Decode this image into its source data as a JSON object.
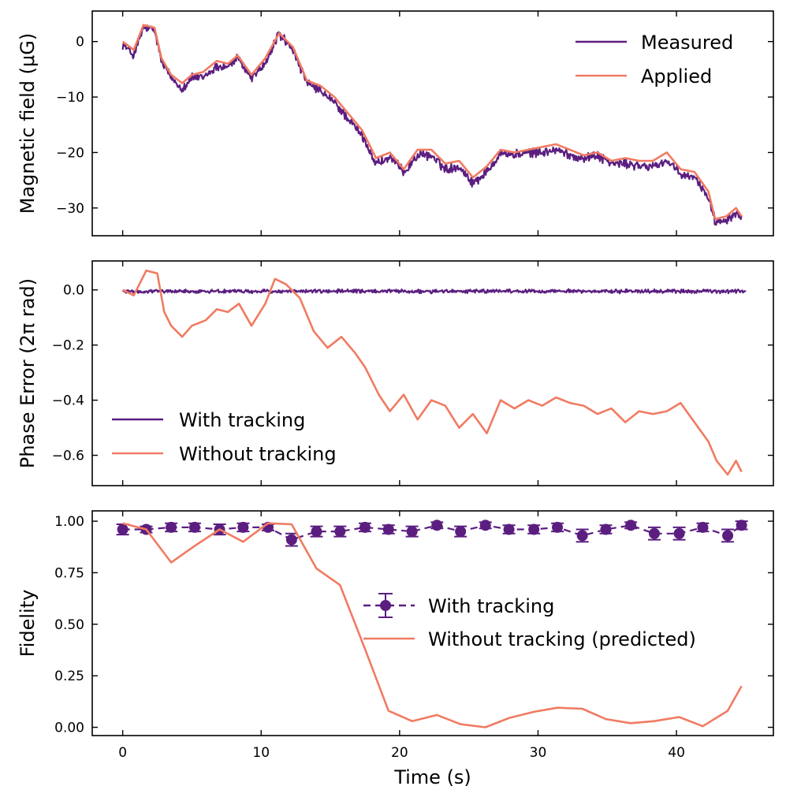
{
  "chart_data": [
    {
      "type": "line",
      "ylabel": "Magnetic field (μG)",
      "xlim": [
        -2.2,
        47.0
      ],
      "ylim": [
        -35,
        5.5
      ],
      "xticks": [
        0,
        10,
        20,
        30,
        40
      ],
      "yticks": [
        0,
        -10,
        -20,
        -30
      ],
      "ytick_labels": [
        "0",
        "−10",
        "−20",
        "−30"
      ],
      "legend": "upper right",
      "series": [
        {
          "name": "Measured",
          "color": "#5b1e80",
          "noise": 1.0,
          "x": [
            0,
            0.8,
            1.5,
            2.3,
            2.8,
            3.5,
            4.3,
            5.0,
            5.8,
            6.8,
            7.6,
            8.3,
            9.3,
            10.3,
            11.3,
            12.3,
            13.3,
            14.3,
            15.3,
            16.3,
            17.3,
            18.3,
            19.3,
            20.3,
            21.3,
            22.3,
            23.3,
            24.3,
            25.3,
            26.3,
            27.3,
            28.3,
            29.3,
            30.3,
            31.3,
            32.3,
            33.3,
            34.3,
            35.3,
            36.3,
            37.3,
            38.3,
            39.3,
            40.3,
            41.3,
            42.3,
            42.8,
            43.6,
            44.3,
            44.7
          ],
          "y": [
            -0.5,
            -2.5,
            2.5,
            2.0,
            -3.5,
            -6.5,
            -8.5,
            -6.5,
            -6.5,
            -4.5,
            -4.5,
            -3.0,
            -6.5,
            -4.0,
            1.5,
            -1.5,
            -7.5,
            -9.0,
            -11.0,
            -14.0,
            -17.0,
            -22.0,
            -21.0,
            -23.5,
            -20.5,
            -20.5,
            -23.0,
            -22.5,
            -25.5,
            -23.5,
            -20.0,
            -20.5,
            -20.0,
            -20.0,
            -19.5,
            -20.5,
            -21.0,
            -20.5,
            -22.0,
            -22.0,
            -22.5,
            -22.5,
            -21.5,
            -24.0,
            -24.5,
            -28.0,
            -32.5,
            -32.0,
            -31.0,
            -31.5
          ]
        },
        {
          "name": "Applied",
          "color": "#f07b62",
          "x": [
            0,
            0.8,
            1.5,
            2.3,
            2.8,
            3.5,
            4.3,
            5.0,
            5.8,
            6.8,
            7.6,
            8.3,
            9.3,
            10.3,
            11.3,
            12.3,
            13.3,
            14.3,
            15.3,
            16.3,
            17.3,
            18.3,
            19.3,
            20.3,
            21.3,
            22.3,
            23.3,
            24.3,
            25.3,
            26.3,
            27.3,
            28.3,
            29.3,
            30.3,
            31.3,
            32.3,
            33.3,
            34.3,
            35.3,
            36.3,
            37.3,
            38.3,
            39.3,
            40.3,
            41.3,
            42.3,
            42.8,
            43.6,
            44.3,
            44.7
          ],
          "y": [
            0.0,
            -1.5,
            3.0,
            2.5,
            -3.0,
            -6.0,
            -7.5,
            -6.0,
            -5.5,
            -3.5,
            -4.0,
            -2.5,
            -6.0,
            -3.0,
            1.5,
            -1.0,
            -7.0,
            -8.0,
            -10.0,
            -13.0,
            -16.0,
            -21.0,
            -20.0,
            -23.0,
            -19.5,
            -19.5,
            -22.0,
            -21.5,
            -24.5,
            -22.5,
            -19.5,
            -20.0,
            -19.5,
            -19.0,
            -18.5,
            -19.5,
            -20.5,
            -20.0,
            -21.5,
            -21.0,
            -21.5,
            -21.5,
            -20.0,
            -23.0,
            -23.5,
            -27.0,
            -32.0,
            -31.5,
            -30.0,
            -31.5
          ]
        }
      ]
    },
    {
      "type": "line",
      "ylabel": "Phase Error (2π rad)",
      "xlim": [
        -2.2,
        47.0
      ],
      "ylim": [
        -0.71,
        0.105
      ],
      "xticks": [
        0,
        10,
        20,
        30,
        40
      ],
      "yticks": [
        0.0,
        -0.2,
        -0.4,
        -0.6
      ],
      "ytick_labels": [
        "0.0",
        "−0.2",
        "−0.4",
        "−0.6"
      ],
      "legend": "lower left",
      "series": [
        {
          "name": "With tracking",
          "color": "#5b1e80",
          "noise": 0.008,
          "x": [
            0,
            45
          ],
          "y": [
            -0.005,
            -0.005
          ]
        },
        {
          "name": "Without tracking",
          "color": "#f07b62",
          "x": [
            0,
            0.8,
            1.7,
            2.5,
            3.0,
            3.5,
            4.3,
            5.0,
            6.0,
            6.8,
            7.6,
            8.4,
            9.3,
            10.3,
            11.0,
            11.8,
            12.8,
            13.8,
            14.8,
            15.8,
            16.8,
            17.5,
            18.5,
            19.3,
            20.3,
            21.3,
            22.3,
            23.3,
            24.3,
            25.3,
            26.3,
            27.3,
            28.3,
            29.3,
            30.3,
            31.3,
            32.3,
            33.3,
            34.3,
            35.3,
            36.3,
            37.3,
            38.3,
            39.3,
            40.3,
            41.3,
            42.3,
            42.9,
            43.7,
            44.3,
            44.7
          ],
          "y": [
            0.0,
            -0.02,
            0.07,
            0.06,
            -0.08,
            -0.13,
            -0.17,
            -0.13,
            -0.11,
            -0.07,
            -0.08,
            -0.05,
            -0.13,
            -0.05,
            0.04,
            0.02,
            -0.03,
            -0.15,
            -0.21,
            -0.17,
            -0.23,
            -0.28,
            -0.38,
            -0.44,
            -0.38,
            -0.47,
            -0.4,
            -0.42,
            -0.5,
            -0.45,
            -0.52,
            -0.4,
            -0.43,
            -0.4,
            -0.42,
            -0.39,
            -0.41,
            -0.42,
            -0.45,
            -0.43,
            -0.48,
            -0.44,
            -0.45,
            -0.44,
            -0.41,
            -0.48,
            -0.55,
            -0.62,
            -0.67,
            -0.62,
            -0.66
          ]
        }
      ]
    },
    {
      "type": "line",
      "ylabel": "Fidelity",
      "xlabel": "Time (s)",
      "xlim": [
        -2.2,
        47.0
      ],
      "ylim": [
        -0.04,
        1.05
      ],
      "xticks": [
        0,
        10,
        20,
        30,
        40
      ],
      "yticks": [
        0.0,
        0.25,
        0.5,
        0.75,
        1.0
      ],
      "ytick_labels": [
        "0.00",
        "0.25",
        "0.50",
        "0.75",
        "1.00"
      ],
      "xtick_labels": [
        "0",
        "10",
        "20",
        "30",
        "40"
      ],
      "legend": "center right",
      "series": [
        {
          "name": "With tracking",
          "color": "#5b1e80",
          "style": "dashed-errorbar",
          "x": [
            0.0,
            1.7,
            3.5,
            5.2,
            7.0,
            8.7,
            10.5,
            12.2,
            14.0,
            15.7,
            17.5,
            19.2,
            20.9,
            22.7,
            24.4,
            26.2,
            27.9,
            29.7,
            31.4,
            33.2,
            34.9,
            36.7,
            38.4,
            40.2,
            41.9,
            43.7,
            44.7
          ],
          "y": [
            0.96,
            0.96,
            0.97,
            0.97,
            0.96,
            0.97,
            0.97,
            0.91,
            0.95,
            0.95,
            0.97,
            0.96,
            0.95,
            0.98,
            0.95,
            0.98,
            0.96,
            0.96,
            0.97,
            0.93,
            0.96,
            0.98,
            0.94,
            0.94,
            0.97,
            0.93,
            0.98
          ],
          "yerr": [
            0.025,
            0.015,
            0.02,
            0.02,
            0.025,
            0.02,
            0.015,
            0.03,
            0.025,
            0.025,
            0.02,
            0.02,
            0.025,
            0.015,
            0.025,
            0.015,
            0.02,
            0.02,
            0.02,
            0.03,
            0.02,
            0.015,
            0.03,
            0.03,
            0.02,
            0.03,
            0.02
          ]
        },
        {
          "name": "Without tracking (predicted)",
          "color": "#f07b62",
          "x": [
            0.0,
            1.7,
            3.5,
            5.2,
            7.0,
            8.7,
            10.5,
            12.2,
            14.0,
            15.7,
            17.5,
            19.2,
            20.9,
            22.7,
            24.4,
            26.2,
            27.9,
            29.7,
            31.4,
            33.2,
            34.9,
            36.7,
            38.4,
            40.2,
            41.9,
            43.7,
            44.7
          ],
          "y": [
            0.99,
            0.96,
            0.8,
            0.88,
            0.96,
            0.9,
            0.99,
            0.985,
            0.77,
            0.69,
            0.38,
            0.08,
            0.03,
            0.06,
            0.015,
            0.0,
            0.045,
            0.075,
            0.095,
            0.09,
            0.04,
            0.02,
            0.03,
            0.05,
            0.005,
            0.08,
            0.2
          ]
        }
      ]
    }
  ]
}
